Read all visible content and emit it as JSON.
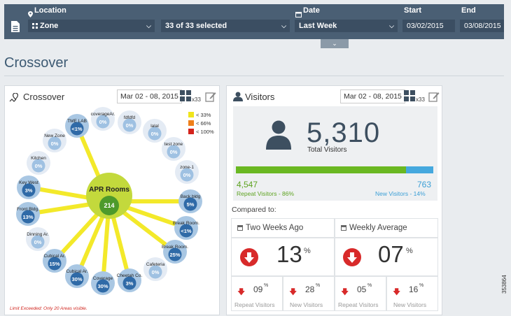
{
  "filters": {
    "location_label": "Location",
    "zone_value": "Zone",
    "selection_value": "33 of 33 selected",
    "date_label": "Date",
    "date_value": "Last Week",
    "start_label": "Start",
    "start_value": "03/02/2015",
    "end_label": "End",
    "end_value": "03/08/2015"
  },
  "page_title": "Crossover",
  "crossover_card": {
    "title": "Crossover",
    "date_range": "Mar 02 - 08, 2015",
    "count_suffix": "x33",
    "legend": [
      {
        "label": "< 33%",
        "color": "#f0e51c"
      },
      {
        "label": "< 66%",
        "color": "#ef7f1a"
      },
      {
        "label": "< 100%",
        "color": "#d4231c"
      }
    ],
    "center": {
      "name": "APR Rooms",
      "value": "214"
    },
    "nodes": [
      {
        "name": "TME LAB",
        "value": "<1%",
        "linked": true
      },
      {
        "name": "coverageAr.",
        "value": "0%",
        "linked": false
      },
      {
        "name": "fdfdfd",
        "value": "0%",
        "linked": false
      },
      {
        "name": "lalal",
        "value": "0%",
        "linked": false
      },
      {
        "name": "test zone",
        "value": "0%",
        "linked": false
      },
      {
        "name": "zone-1",
        "value": "0%",
        "linked": false
      },
      {
        "name": "Back bldg",
        "value": "5%",
        "linked": true
      },
      {
        "name": "Break Room.",
        "value": "<1%",
        "linked": true
      },
      {
        "name": "Break Room.",
        "value": "25%",
        "linked": true
      },
      {
        "name": "Cafeteria",
        "value": "0%",
        "linked": false
      },
      {
        "name": "Cheetah Co.",
        "value": "3%",
        "linked": true
      },
      {
        "name": "Coverage",
        "value": "30%",
        "linked": true
      },
      {
        "name": "Cubical Ar.",
        "value": "30%",
        "linked": true
      },
      {
        "name": "Cubical Ar.",
        "value": "15%",
        "linked": true
      },
      {
        "name": "Dinning Ar.",
        "value": "0%",
        "linked": false
      },
      {
        "name": "Front Bldg.",
        "value": "13%",
        "linked": true
      },
      {
        "name": "Key West",
        "value": "3%",
        "linked": true
      },
      {
        "name": "Kitchen",
        "value": "0%",
        "linked": false
      },
      {
        "name": "New Zone",
        "value": "0%",
        "linked": false
      }
    ],
    "limit_note": "Limit Exceeded: Only 20 Areas visible."
  },
  "visitors_card": {
    "title": "Visitors",
    "date_range": "Mar 02 - 08, 2015",
    "count_suffix": "x33",
    "total": "5,310",
    "total_label": "Total Visitors",
    "repeat_count": "4,547",
    "repeat_label": "Repeat Visitors - 86%",
    "repeat_fraction": 0.86,
    "new_count": "763",
    "new_label": "New Visitors - 14%",
    "compared_label": "Compared to:",
    "comparisons": [
      {
        "title": "Two Weeks Ago",
        "value": "13",
        "unit": "%",
        "repeat_value": "09",
        "repeat_label": "Repeat Visitors",
        "new_value": "28",
        "new_label": "New Visitors"
      },
      {
        "title": "Weekly Average",
        "value": "07",
        "unit": "%",
        "repeat_value": "05",
        "repeat_label": "Repeat Visitors",
        "new_value": "16",
        "new_label": "New Visitors"
      }
    ]
  },
  "figure_id": "353864",
  "colors": {
    "header_bg": "#4a5f74",
    "link_line": "#f3e92a",
    "center_node": "#c3d93c",
    "node_blue": "#8bb3d6",
    "repeat_green": "#6ab822",
    "new_blue": "#45a8de",
    "decrease_red": "#d82a2a"
  }
}
